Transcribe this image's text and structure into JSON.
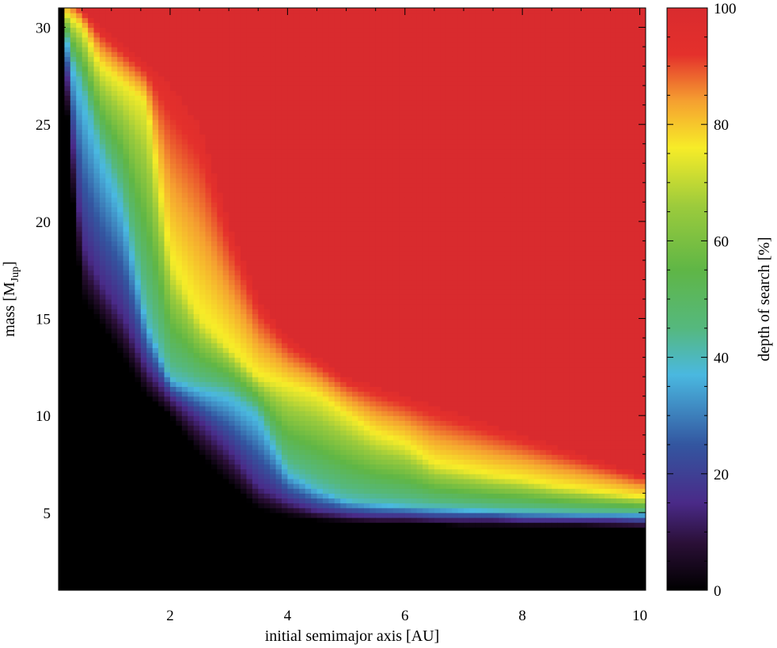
{
  "chart_data": {
    "type": "heatmap",
    "xlabel": "initial semimajor axis [AU]",
    "ylabel": {
      "main": "mass [M",
      "sub": "Jup",
      "tail": "]"
    },
    "xlim": [
      0.1,
      10.1
    ],
    "ylim": [
      1,
      31
    ],
    "x_ticks": [
      2,
      4,
      6,
      8,
      10
    ],
    "x_tick_labels": [
      "2",
      "4",
      "6",
      "8",
      "10"
    ],
    "y_ticks": [
      5,
      10,
      15,
      20,
      25,
      30
    ],
    "y_tick_labels": [
      "5",
      "10",
      "15",
      "20",
      "25",
      "30"
    ],
    "colorbar": {
      "label": "depth of search [%]",
      "range": [
        0,
        100
      ],
      "ticks": [
        0,
        20,
        40,
        60,
        80,
        100
      ],
      "tick_labels": [
        "0",
        "20",
        "40",
        "60",
        "80",
        "100"
      ],
      "colormap": [
        {
          "v": 0,
          "color": "#000000"
        },
        {
          "v": 8,
          "color": "#2a0f36"
        },
        {
          "v": 15,
          "color": "#4a2a88"
        },
        {
          "v": 25,
          "color": "#3356a0"
        },
        {
          "v": 37,
          "color": "#4ab8e0"
        },
        {
          "v": 45,
          "color": "#55b87e"
        },
        {
          "v": 55,
          "color": "#5fb646"
        },
        {
          "v": 66,
          "color": "#9ccb3c"
        },
        {
          "v": 76,
          "color": "#f7ec28"
        },
        {
          "v": 84,
          "color": "#f5a030"
        },
        {
          "v": 92,
          "color": "#e4302c"
        },
        {
          "v": 100,
          "color": "#d92b2e"
        }
      ]
    },
    "grid": false,
    "description_of_values": "depth of search (%) as a function of initial semimajor axis (AU) and mass (MJup)",
    "value_profile": {
      "semimajor_axis_AU": [
        0.15,
        0.3,
        0.5,
        0.8,
        1.2,
        1.6,
        2.0,
        2.5,
        3.0,
        3.5,
        4.0,
        4.5,
        5.0,
        5.5,
        6.0,
        6.5,
        7.0,
        7.5,
        8.0,
        8.5,
        9.0,
        9.5,
        10.0
      ],
      "mass_at_0_percent_MJup": [
        31.0,
        22.5,
        16.0,
        14.8,
        13.0,
        11.0,
        10.0,
        8.0,
        6.5,
        5.2,
        4.8,
        4.6,
        4.5,
        4.4,
        4.4,
        4.4,
        4.3,
        4.3,
        4.3,
        4.3,
        4.3,
        4.2,
        4.2
      ],
      "mass_at_15_percent_MJup": [
        31.0,
        25.5,
        19.0,
        17.0,
        15.2,
        12.5,
        11.0,
        9.8,
        8.3,
        6.4,
        5.6,
        5.1,
        4.9,
        4.8,
        4.8,
        4.7,
        4.7,
        4.7,
        4.6,
        4.6,
        4.6,
        4.6,
        4.5
      ],
      "mass_at_40_percent_MJup": [
        31.0,
        28.5,
        27.0,
        24.0,
        21.0,
        15.0,
        12.0,
        11.5,
        11.2,
        10.2,
        7.2,
        6.3,
        5.7,
        5.5,
        5.4,
        5.3,
        5.2,
        5.15,
        5.1,
        5.05,
        5.0,
        5.0,
        5.0
      ],
      "mass_at_75_percent_MJup": [
        31.0,
        30.5,
        30.0,
        28.0,
        27.0,
        26.0,
        18.0,
        15.0,
        13.5,
        12.0,
        11.5,
        11.0,
        10.0,
        9.0,
        8.5,
        7.5,
        7.2,
        6.9,
        6.7,
        6.4,
        6.2,
        6.0,
        5.8
      ],
      "mass_at_95_percent_MJup": [
        31.5,
        31.5,
        31.0,
        30.0,
        29.0,
        28.0,
        27.0,
        25.0,
        20.0,
        16.0,
        14.0,
        13.0,
        12.0,
        11.5,
        11.0,
        10.5,
        10.0,
        9.5,
        9.0,
        8.5,
        8.0,
        7.5,
        7.0
      ]
    }
  }
}
